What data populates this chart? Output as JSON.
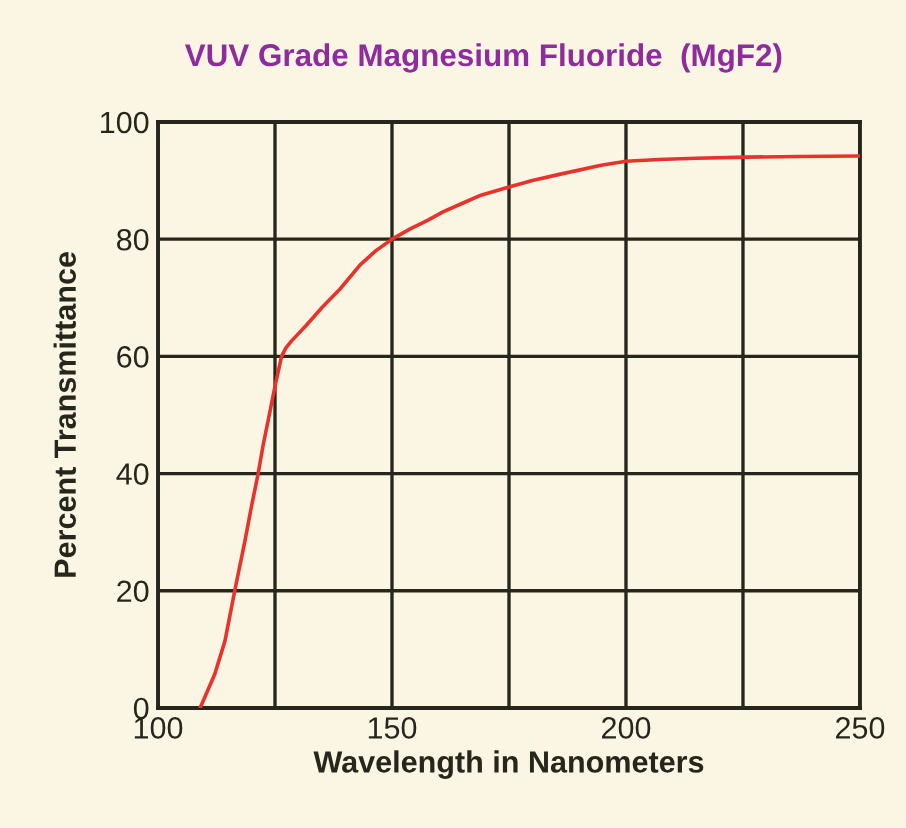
{
  "chart_data": {
    "type": "line",
    "title": "VUV Grade Magnesium Fluoride  (MgF2)",
    "xlabel": "Wavelength in Nanometers",
    "ylabel": "Percent Transmittance",
    "x": [
      109,
      112.1,
      114.3,
      116.4,
      118.6,
      120,
      121.4,
      122.5,
      123.6,
      125,
      126.4,
      127.3,
      128.5,
      131.7,
      135,
      138.9,
      143.2,
      146.5,
      150,
      154,
      157.6,
      161,
      164.7,
      169,
      175,
      180,
      186,
      194.7,
      200,
      207,
      215,
      225.7,
      237,
      250
    ],
    "series": [
      {
        "color": "#e8322b",
        "values": [
          0,
          5.7,
          11.4,
          20,
          28.6,
          34.5,
          40,
          45,
          49.3,
          54.9,
          60,
          61.4,
          62.6,
          65.3,
          68.3,
          71.5,
          75.6,
          78,
          80,
          81.8,
          83.2,
          84.7,
          86,
          87.5,
          88.9,
          90,
          91.1,
          92.6,
          93.3,
          93.6,
          93.8,
          94,
          94.1,
          94.2
        ]
      }
    ],
    "xlim": [
      100,
      250
    ],
    "ylim": [
      0,
      100
    ],
    "xticks": [
      100,
      {
        "value": 125,
        "label": null
      },
      150,
      {
        "value": 175,
        "label": null
      },
      200,
      {
        "value": 225,
        "label": null
      },
      250
    ],
    "yticks": [
      0,
      20,
      40,
      60,
      80,
      100
    ],
    "grid": true
  }
}
